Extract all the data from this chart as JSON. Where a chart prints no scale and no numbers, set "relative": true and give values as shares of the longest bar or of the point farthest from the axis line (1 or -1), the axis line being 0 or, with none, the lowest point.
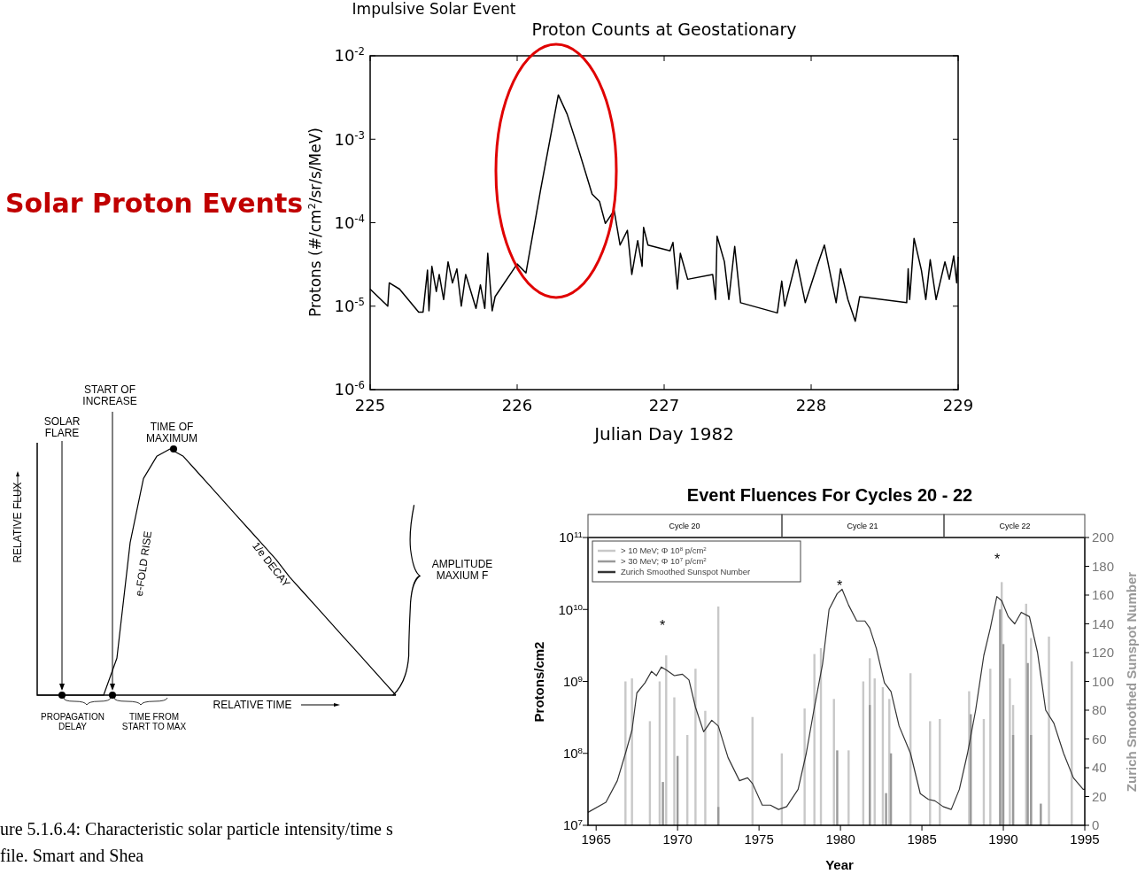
{
  "chart_data": [
    {
      "type": "line",
      "title": "Impulsive Solar Event",
      "subtitle": "Proton Counts at Geostationary",
      "xlabel": "Julian Day 1982",
      "ylabel": "Protons (#/cm$^{2}$/sr/s/MeV)",
      "log": true,
      "xlim": [
        225,
        229
      ],
      "xticks": [
        225,
        226,
        227,
        228,
        229
      ],
      "ylim": [
        1e-06,
        0.01
      ],
      "yticks": [
        {
          "value": 1e-06,
          "label": "10$^{-6}$"
        },
        {
          "value": 1e-05,
          "label": "10$^{-5}$"
        },
        {
          "value": 0.0001,
          "label": "10$^{-4}$"
        },
        {
          "value": 0.001,
          "label": "10$^{-3}$"
        },
        {
          "value": 0.01,
          "label": "10$^{-2}$"
        }
      ],
      "color": "#000000",
      "annotations": [
        "Solar Proton Events"
      ],
      "x": [
        225.0,
        225.12,
        225.13,
        225.2,
        225.33,
        225.36,
        225.39,
        225.4,
        225.42,
        225.45,
        225.47,
        225.5,
        225.53,
        225.56,
        225.59,
        225.62,
        225.65,
        225.72,
        225.75,
        225.78,
        225.8,
        225.83,
        225.85,
        226.0,
        226.06,
        226.16,
        226.28,
        226.34,
        226.42,
        226.51,
        226.56,
        226.6,
        226.66,
        226.7,
        226.75,
        226.78,
        226.82,
        226.85,
        226.86,
        226.89,
        227.04,
        227.06,
        227.09,
        227.11,
        227.16,
        227.33,
        227.35,
        227.36,
        227.41,
        227.44,
        227.48,
        227.52,
        227.77,
        227.8,
        227.82,
        227.9,
        227.96,
        228.04,
        228.09,
        228.17,
        228.2,
        228.25,
        228.3,
        228.33,
        228.65,
        228.66,
        228.67,
        228.7,
        228.75,
        228.78,
        228.81,
        228.85,
        228.91,
        228.94,
        228.97,
        228.99,
        229.0
      ],
      "values": [
        1.6e-05,
        1e-05,
        1.9e-05,
        1.6e-05,
        8.5e-06,
        8.5e-06,
        2.7e-05,
        8.8e-06,
        3e-05,
        1.5e-05,
        2.4e-05,
        1.2e-05,
        3.4e-05,
        1.9e-05,
        2.8e-05,
        1e-05,
        2.4e-05,
        9.4e-06,
        1.8e-05,
        9.4e-06,
        4.3e-05,
        8.8e-06,
        1.3e-05,
        3.2e-05,
        2.5e-05,
        0.00025,
        0.0034,
        0.002,
        0.00073,
        0.00022,
        0.00018,
        9.8e-05,
        0.00014,
        5.4e-05,
        8.1e-05,
        2.4e-05,
        6.1e-05,
        3e-05,
        8.8e-05,
        5.4e-05,
        4.6e-05,
        5.8e-05,
        1.6e-05,
        4.3e-05,
        2.1e-05,
        2.4e-05,
        1.2e-05,
        6.9e-05,
        3.4e-05,
        1.2e-05,
        5.2e-05,
        1.1e-05,
        8.3e-06,
        2e-05,
        1e-05,
        3.6e-05,
        1.1e-05,
        3e-05,
        5.4e-05,
        1.1e-05,
        2.8e-05,
        1.2e-05,
        6.6e-06,
        1.3e-05,
        1.1e-05,
        2.8e-05,
        1.2e-05,
        6.5e-05,
        2.7e-05,
        1.2e-05,
        3.6e-05,
        1.2e-05,
        3.4e-05,
        2.1e-05,
        4e-05,
        1.9e-05,
        3.9e-05
      ]
    },
    {
      "type": "line",
      "relative": true,
      "xlabel": "RELATIVE TIME",
      "ylabel": "RELATIVE FLUX",
      "color": "#000000",
      "categories": [
        null,
        null,
        null,
        null,
        null,
        null,
        null,
        null,
        null,
        null,
        null,
        null,
        null,
        null,
        null,
        null,
        null,
        null,
        null,
        null,
        null,
        null,
        null,
        null,
        null,
        null,
        null,
        null
      ],
      "values": [
        0,
        0,
        0,
        0,
        0,
        0,
        0.15,
        0.62,
        0.88,
        0.97,
        1,
        0.97,
        0.91,
        0.85,
        0.79,
        0.73,
        0.67,
        0.61,
        0.55,
        0.48,
        0.42,
        0.36,
        0.3,
        0.24,
        0.18,
        0.12,
        0.06,
        0
      ],
      "annotations": [
        "START OF\nINCREASE",
        "SOLAR\nFLARE",
        "TIME OF\nMAXIMUM",
        "e-FOLD RISE",
        "1/e DECAY",
        "AMPLITUDE\nMAXIUM F",
        "PROPAGATION\nDELAY",
        "TIME FROM\nSTART TO MAX",
        "ure 5.1.6.4:  Characteristic solar particle intensity/time s",
        "file.  Smart and Shea"
      ]
    },
    {
      "type": "bar",
      "title": "Event Fluences For Cycles 20 - 22",
      "xlabel": "Year",
      "ylabel": "Protons/cm2",
      "y2label": "Zurich Smoothed Sunspot Number",
      "log": true,
      "legend": "top left",
      "xlim": [
        1964.5,
        1995
      ],
      "xticks": [
        1965,
        1970,
        1975,
        1980,
        1985,
        1990,
        1995
      ],
      "ylim": [
        10000000.0,
        100000000000.0
      ],
      "yticks": [
        {
          "value": 10000000.0,
          "label": "10$^{7}$"
        },
        {
          "value": 100000000.0,
          "label": "10$^{8}$"
        },
        {
          "value": 1000000000.0,
          "label": "10$^{9}$"
        },
        {
          "value": 10000000000.0,
          "label": "10$^{10}$"
        },
        {
          "value": 100000000000.0,
          "label": "10$^{11}$"
        }
      ],
      "y2lim": [
        0,
        200
      ],
      "y2ticks": [
        0,
        20,
        40,
        60,
        80,
        100,
        120,
        140,
        160,
        180,
        200
      ],
      "annotations": [
        "Cycle 20",
        "Cycle 21",
        "Cycle 22",
        "*",
        "*",
        "*"
      ],
      "series": [
        {
          "name": "> 10 MeV;  Φ    10$^{8}$ p/cm$^{2}$",
          "color": "#c8c8c8",
          "x": [
            1966.8,
            1967.2,
            1968.3,
            1968.9,
            1969.3,
            1969.8,
            1970.6,
            1971.1,
            1971.7,
            1972.5,
            1974.6,
            1976.4,
            1977.8,
            1978.4,
            1978.8,
            1979.6,
            1980.5,
            1981.4,
            1981.8,
            1982.1,
            1982.6,
            1983.0,
            1984.3,
            1985.5,
            1986.1,
            1987.9,
            1988.8,
            1989.2,
            1989.9,
            1990.4,
            1990.6,
            1991.4,
            1991.7,
            1992.8,
            1994.2
          ],
          "values": [
            1000000000.0,
            1100000000.0,
            280000000.0,
            1000000000.0,
            2300000000.0,
            600000000.0,
            180000000.0,
            1500000000.0,
            390000000.0,
            11000000000.0,
            320000000.0,
            100000000.0,
            420000000.0,
            2400000000.0,
            2900000000.0,
            570000000.0,
            110000000.0,
            1000000000.0,
            2100000000.0,
            1100000000.0,
            830000000.0,
            570000000.0,
            1300000000.0,
            280000000.0,
            300000000.0,
            730000000.0,
            300000000.0,
            1500000000.0,
            24000000000.0,
            1100000000.0,
            470000000.0,
            12000000000.0,
            4000000000.0,
            4200000000.0,
            1900000000.0
          ]
        },
        {
          "name": "> 30 MeV;  Φ    10$^{7}$ p/cm$^{2}$",
          "color": "#999999",
          "x": [
            1969.1,
            1970.0,
            1972.5,
            1979.8,
            1981.8,
            1982.8,
            1983.1,
            1988.0,
            1989.8,
            1990.0,
            1990.6,
            1991.5,
            1991.7,
            1992.3
          ],
          "values": [
            40000000.0,
            92000000.0,
            18000000.0,
            110000000.0,
            470000000.0,
            28000000.0,
            100000000.0,
            350000000.0,
            10000000000.0,
            3300000000.0,
            180000000.0,
            1800000000.0,
            180000000.0,
            20000000.0
          ]
        },
        {
          "name": "Zurich Smoothed Sunspot Number",
          "type": "line",
          "axis": "y2",
          "color": "#333333",
          "x": [
            1964.5,
            1965.6,
            1966.3,
            1966.8,
            1967.2,
            1967.5,
            1968.0,
            1968.4,
            1968.7,
            1969.0,
            1969.3,
            1969.8,
            1970.3,
            1970.7,
            1971.1,
            1971.6,
            1972.1,
            1972.5,
            1973.1,
            1973.8,
            1974.3,
            1974.6,
            1975.2,
            1975.7,
            1976.2,
            1976.7,
            1977.4,
            1977.9,
            1978.4,
            1978.9,
            1979.3,
            1979.8,
            1980.1,
            1980.5,
            1981.0,
            1981.5,
            1981.8,
            1982.2,
            1982.7,
            1983.1,
            1983.6,
            1984.3,
            1984.9,
            1985.4,
            1985.8,
            1986.3,
            1986.8,
            1987.3,
            1987.8,
            1988.3,
            1988.8,
            1989.2,
            1989.6,
            1989.9,
            1990.3,
            1990.7,
            1991.1,
            1991.6,
            1992.1,
            1992.6,
            1993.1,
            1993.7,
            1994.3,
            1994.9,
            1995.0
          ],
          "values": [
            9,
            16,
            31,
            50,
            66,
            92,
            99,
            107,
            104,
            110,
            108,
            104,
            105,
            101,
            82,
            65,
            73,
            69,
            47,
            31,
            33,
            29,
            14,
            14,
            11,
            13,
            25,
            50,
            82,
            112,
            150,
            161,
            164,
            153,
            142,
            142,
            137,
            123,
            99,
            93,
            69,
            50,
            22,
            18,
            17,
            13,
            11,
            25,
            50,
            80,
            118,
            137,
            159,
            156,
            145,
            140,
            148,
            145,
            120,
            80,
            71,
            50,
            33,
            25,
            25
          ]
        }
      ]
    }
  ]
}
